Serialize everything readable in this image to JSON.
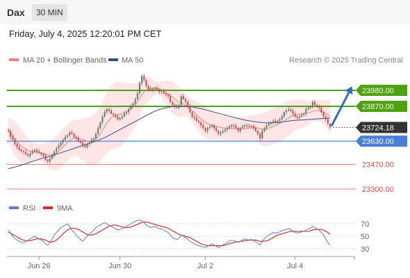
{
  "header": {
    "symbol": "Dax",
    "timeframe": "30 MIN"
  },
  "timestamp": "Friday, July 4, 2025 12:20:01 PM CET",
  "legend": {
    "items": [
      {
        "label": "MA 20 + Bollinger Bands",
        "color": "#f08080"
      },
      {
        "label": "MA 50",
        "color": "#2f4f8f"
      }
    ]
  },
  "copyright": "Research © 2025 Trading Central",
  "colors": {
    "resistance": "#4ca30d",
    "support": "#4a7fd9",
    "support_faint": "#e05050",
    "bearish_candle": "#c84a4a",
    "bullish_candle": "#5c7a5c",
    "band_fill": "#ffdcdc",
    "rsi": "#5b7fd4",
    "rsi_ma": "#d42a2a",
    "arrow": "#2e6bbf"
  },
  "chart_data": [
    {
      "type": "candlestick",
      "title": "",
      "x_ticks": [
        "Jun 26",
        "Jun 30",
        "Jul 2",
        "Jul 4"
      ],
      "ylim": [
        23230,
        24100
      ],
      "grid": false,
      "legend_position": "top-left",
      "series": [
        {
          "name": "MA 20 + Bollinger Bands",
          "kind": "moving_average_with_bands"
        },
        {
          "name": "MA 50",
          "kind": "moving_average"
        }
      ],
      "levels": [
        {
          "value": 23980.0,
          "label": "23980.00",
          "kind": "resistance"
        },
        {
          "value": 23870.0,
          "label": "23870.00",
          "kind": "resistance"
        },
        {
          "value": 23724.18,
          "label": "23724.18",
          "kind": "last_price"
        },
        {
          "value": 23630.0,
          "label": "23630.00",
          "kind": "pivot"
        },
        {
          "value": 23470.0,
          "label": "23470.00",
          "kind": "support"
        },
        {
          "value": 23300.0,
          "label": "23300.00",
          "kind": "support"
        }
      ],
      "close": [
        23700,
        23660,
        23640,
        23610,
        23590,
        23570,
        23560,
        23555,
        23540,
        23530,
        23545,
        23560,
        23570,
        23560,
        23550,
        23540,
        23530,
        23500,
        23490,
        23510,
        23530,
        23560,
        23580,
        23600,
        23620,
        23640,
        23660,
        23670,
        23690,
        23680,
        23660,
        23650,
        23630,
        23620,
        23600,
        23590,
        23610,
        23620,
        23640,
        23650,
        23680,
        23720,
        23760,
        23800,
        23830,
        23850,
        23840,
        23820,
        23810,
        23800,
        23780,
        23790,
        23800,
        23820,
        23830,
        23850,
        23870,
        23890,
        23920,
        23960,
        24030,
        24080,
        24050,
        24010,
        23990,
        23980,
        23990,
        23995,
        23985,
        23970,
        23975,
        23960,
        23950,
        23940,
        23900,
        23880,
        23870,
        23860,
        23880,
        23940,
        23920,
        23900,
        23870,
        23830,
        23800,
        23790,
        23770,
        23760,
        23740,
        23720,
        23700,
        23720,
        23730,
        23740,
        23720,
        23700,
        23680,
        23690,
        23700,
        23710,
        23720,
        23730,
        23740,
        23735,
        23720,
        23700,
        23720,
        23730,
        23740,
        23735,
        23730,
        23735,
        23720,
        23700,
        23680,
        23650,
        23700,
        23720,
        23740,
        23750,
        23760,
        23770,
        23760,
        23770,
        23780,
        23800,
        23830,
        23840,
        23850,
        23840,
        23820,
        23800,
        23790,
        23800,
        23810,
        23820,
        23850,
        23860,
        23870,
        23900,
        23880,
        23870,
        23860,
        23830,
        23800,
        23780,
        23750,
        23724.18
      ],
      "ma20": [
        23700,
        23690,
        23670,
        23650,
        23630,
        23610,
        23595,
        23585,
        23575,
        23565,
        23560,
        23558,
        23558,
        23555,
        23552,
        23548,
        23545,
        23540,
        23535,
        23533,
        23535,
        23540,
        23548,
        23560,
        23575,
        23590,
        23605,
        23620,
        23635,
        23645,
        23650,
        23652,
        23650,
        23645,
        23640,
        23635,
        23630,
        23630,
        23632,
        23635,
        23645,
        23660,
        23680,
        23705,
        23730,
        23755,
        23775,
        23790,
        23800,
        23808,
        23812,
        23816,
        23820,
        23828,
        23836,
        23845,
        23855,
        23866,
        23880,
        23900,
        23925,
        23950,
        23970,
        23982,
        23990,
        23994,
        23996,
        23997,
        23995,
        23990,
        23985,
        23975,
        23965,
        23955,
        23945,
        23933,
        23920,
        23908,
        23898,
        23892,
        23886,
        23878,
        23868,
        23855,
        23840,
        23825,
        23810,
        23795,
        23782,
        23770,
        23760,
        23752,
        23745,
        23740,
        23736,
        23732,
        23728,
        23725,
        23722,
        23720,
        23718,
        23717,
        23716,
        23716,
        23716,
        23715,
        23714,
        23714,
        23716,
        23718,
        23720,
        23722,
        23723,
        23722,
        23720,
        23716,
        23712,
        23712,
        23715,
        23720,
        23726,
        23732,
        23738,
        23744,
        23752,
        23760,
        23770,
        23780,
        23790,
        23798,
        23805,
        23810,
        23813,
        23816,
        23818,
        23820,
        23823,
        23826,
        23830,
        23835,
        23838,
        23840,
        23840,
        23836,
        23830,
        23822,
        23812,
        23800
      ],
      "upper_band": [
        23790,
        23785,
        23780,
        23770,
        23750,
        23730,
        23710,
        23690,
        23670,
        23650,
        23635,
        23625,
        23620,
        23615,
        23612,
        23610,
        23610,
        23615,
        23620,
        23630,
        23640,
        23650,
        23665,
        23680,
        23700,
        23715,
        23730,
        23745,
        23760,
        23770,
        23775,
        23778,
        23780,
        23782,
        23784,
        23786,
        23790,
        23795,
        23800,
        23810,
        23825,
        23845,
        23870,
        23900,
        23930,
        23960,
        23990,
        24010,
        24025,
        24035,
        24040,
        24040,
        24038,
        24035,
        24032,
        24030,
        24028,
        24028,
        24030,
        24035,
        24045,
        24060,
        24070,
        24075,
        24072,
        24065,
        24055,
        24045,
        24040,
        24038,
        24040,
        24042,
        24045,
        24046,
        24045,
        24040,
        24030,
        24015,
        24000,
        23985,
        23970,
        23955,
        23940,
        23928,
        23918,
        23910,
        23902,
        23895,
        23888,
        23880,
        23870,
        23860,
        23850,
        23840,
        23830,
        23822,
        23815,
        23810,
        23806,
        23803,
        23800,
        23798,
        23797,
        23796,
        23796,
        23797,
        23798,
        23800,
        23802,
        23804,
        23806,
        23808,
        23810,
        23812,
        23816,
        23820,
        23825,
        23830,
        23835,
        23840,
        23848,
        23856,
        23864,
        23872,
        23880,
        23888,
        23896,
        23904,
        23910,
        23914,
        23916,
        23917,
        23918,
        23918,
        23917,
        23915,
        23912,
        23910,
        23908,
        23908,
        23910,
        23912,
        23914,
        23915,
        23915,
        23914,
        23913,
        23912
      ],
      "lower_band": [
        23610,
        23595,
        23565,
        23530,
        23510,
        23490,
        23480,
        23480,
        23480,
        23480,
        23485,
        23491,
        23496,
        23495,
        23492,
        23486,
        23480,
        23465,
        23450,
        23436,
        23430,
        23430,
        23431,
        23440,
        23450,
        23465,
        23480,
        23495,
        23510,
        23520,
        23525,
        23526,
        23520,
        23508,
        23496,
        23484,
        23470,
        23465,
        23464,
        23460,
        23465,
        23475,
        23490,
        23510,
        23530,
        23550,
        23560,
        23570,
        23575,
        23581,
        23584,
        23592,
        23602,
        23621,
        23640,
        23660,
        23682,
        23704,
        23730,
        23765,
        23805,
        23840,
        23870,
        23889,
        23908,
        23923,
        23937,
        23949,
        23950,
        23942,
        23930,
        23908,
        23885,
        23864,
        23845,
        23826,
        23810,
        23801,
        23796,
        23799,
        23802,
        23801,
        23796,
        23782,
        23762,
        23740,
        23718,
        23695,
        23676,
        23660,
        23650,
        23644,
        23640,
        23640,
        23642,
        23642,
        23641,
        23640,
        23638,
        23637,
        23636,
        23636,
        23635,
        23636,
        23636,
        23633,
        23630,
        23628,
        23630,
        23632,
        23634,
        23636,
        23636,
        23632,
        23624,
        23612,
        23599,
        23594,
        23595,
        23600,
        23604,
        23608,
        23612,
        23616,
        23624,
        23632,
        23644,
        23656,
        23670,
        23682,
        23694,
        23703,
        23708,
        23714,
        23719,
        23725,
        23734,
        23742,
        23752,
        23762,
        23766,
        23768,
        23766,
        23757,
        23745,
        23730,
        23711,
        23688
      ],
      "ma50": [
        23440,
        23444,
        23448,
        23452,
        23456,
        23460,
        23465,
        23470,
        23475,
        23480,
        23485,
        23490,
        23495,
        23500,
        23505,
        23510,
        23514,
        23518,
        23522,
        23526,
        23530,
        23535,
        23540,
        23545,
        23550,
        23555,
        23560,
        23565,
        23570,
        23575,
        23580,
        23585,
        23590,
        23595,
        23600,
        23605,
        23610,
        23615,
        23620,
        23625,
        23630,
        23636,
        23642,
        23648,
        23655,
        23662,
        23670,
        23678,
        23686,
        23694,
        23702,
        23710,
        23718,
        23726,
        23734,
        23742,
        23750,
        23758,
        23766,
        23774,
        23782,
        23790,
        23798,
        23806,
        23814,
        23822,
        23830,
        23836,
        23842,
        23848,
        23852,
        23856,
        23860,
        23863,
        23866,
        23868,
        23870,
        23871,
        23872,
        23872,
        23872,
        23871,
        23870,
        23868,
        23866,
        23863,
        23860,
        23857,
        23854,
        23850,
        23846,
        23842,
        23838,
        23834,
        23830,
        23826,
        23822,
        23818,
        23814,
        23810,
        23806,
        23802,
        23798,
        23794,
        23790,
        23786,
        23782,
        23779,
        23776,
        23773,
        23770,
        23768,
        23766,
        23764,
        23762,
        23760,
        23758,
        23757,
        23756,
        23756,
        23756,
        23757,
        23758,
        23759,
        23760,
        23762,
        23764,
        23766,
        23768,
        23770,
        23772,
        23773,
        23774,
        23775,
        23776,
        23777,
        23778,
        23779,
        23780,
        23781,
        23782,
        23783,
        23784,
        23785,
        23786,
        23787,
        23788,
        23788
      ]
    },
    {
      "type": "line",
      "title": "",
      "legend_position": "top-left",
      "ylim": [
        20,
        80
      ],
      "y_ticks": [
        "70",
        "50",
        "30"
      ],
      "series": [
        {
          "name": "RSI",
          "values": [
            60,
            55,
            50,
            46,
            44,
            42,
            40,
            40,
            42,
            44,
            46,
            48,
            50,
            48,
            46,
            44,
            42,
            38,
            36,
            40,
            45,
            52,
            56,
            60,
            64,
            66,
            68,
            70,
            66,
            60,
            56,
            52,
            48,
            45,
            42,
            46,
            50,
            54,
            56,
            60,
            64,
            66,
            68,
            70,
            72,
            70,
            68,
            66,
            64,
            62,
            60,
            61,
            62,
            64,
            66,
            68,
            70,
            72,
            74,
            75,
            76,
            75,
            72,
            68,
            66,
            64,
            65,
            66,
            64,
            62,
            62,
            60,
            58,
            56,
            52,
            48,
            46,
            45,
            47,
            52,
            50,
            48,
            45,
            42,
            40,
            38,
            36,
            35,
            34,
            33,
            32,
            34,
            36,
            38,
            36,
            34,
            32,
            34,
            36,
            38,
            40,
            42,
            44,
            43,
            42,
            40,
            42,
            44,
            46,
            45,
            44,
            45,
            43,
            41,
            39,
            36,
            42,
            46,
            50,
            52,
            54,
            56,
            55,
            56,
            57,
            59,
            60,
            61,
            62,
            61,
            58,
            56,
            55,
            56,
            57,
            58,
            60,
            62,
            63,
            66,
            64,
            62,
            60,
            56,
            52,
            46,
            40,
            36
          ]
        },
        {
          "name": "9MA",
          "values": [
            56,
            55,
            53,
            51,
            49,
            47,
            45,
            44,
            43,
            43,
            43,
            44,
            45,
            46,
            46,
            46,
            45,
            44,
            42,
            41,
            41,
            42,
            44,
            47,
            50,
            54,
            57,
            60,
            62,
            63,
            63,
            62,
            61,
            59,
            57,
            55,
            53,
            52,
            52,
            53,
            54,
            56,
            58,
            60,
            62,
            64,
            66,
            67,
            68,
            68,
            67,
            66,
            65,
            64,
            64,
            64,
            65,
            66,
            68,
            69,
            71,
            72,
            73,
            73,
            72,
            71,
            70,
            69,
            68,
            67,
            66,
            65,
            64,
            63,
            61,
            59,
            57,
            55,
            53,
            52,
            51,
            50,
            49,
            48,
            46,
            44,
            42,
            40,
            38,
            37,
            36,
            35,
            35,
            35,
            35,
            35,
            35,
            35,
            35,
            36,
            37,
            38,
            39,
            40,
            41,
            41,
            42,
            42,
            43,
            43,
            44,
            44,
            44,
            44,
            43,
            42,
            42,
            42,
            43,
            44,
            46,
            48,
            50,
            52,
            53,
            54,
            55,
            56,
            57,
            58,
            58,
            58,
            58,
            58,
            58,
            58,
            58,
            58,
            59,
            60,
            61,
            61,
            61,
            61,
            60,
            58,
            56,
            53
          ]
        }
      ]
    }
  ]
}
